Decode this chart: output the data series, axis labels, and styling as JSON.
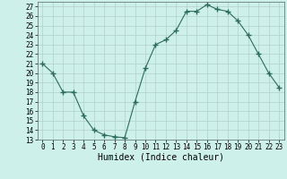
{
  "x": [
    0,
    1,
    2,
    3,
    4,
    5,
    6,
    7,
    8,
    9,
    10,
    11,
    12,
    13,
    14,
    15,
    16,
    17,
    18,
    19,
    20,
    21,
    22,
    23
  ],
  "y": [
    21,
    20,
    18,
    18,
    15.5,
    14,
    13.5,
    13.3,
    13.2,
    17,
    20.5,
    23,
    23.5,
    24.5,
    26.5,
    26.5,
    27.2,
    26.7,
    26.5,
    25.5,
    24,
    22,
    20,
    18.5
  ],
  "line_color": "#2d6b5e",
  "marker": "+",
  "marker_size": 4,
  "marker_linewidth": 1.0,
  "bg_color": "#cef0ea",
  "grid_color_major": "#b0cfc9",
  "grid_color_minor": "#c8e8e2",
  "xlabel": "Humidex (Indice chaleur)",
  "xlim": [
    -0.5,
    23.5
  ],
  "ylim": [
    13,
    27.5
  ],
  "yticks": [
    13,
    14,
    15,
    16,
    17,
    18,
    19,
    20,
    21,
    22,
    23,
    24,
    25,
    26,
    27
  ],
  "xticks": [
    0,
    1,
    2,
    3,
    4,
    5,
    6,
    7,
    8,
    9,
    10,
    11,
    12,
    13,
    14,
    15,
    16,
    17,
    18,
    19,
    20,
    21,
    22,
    23
  ],
  "tick_fontsize": 5.5,
  "xlabel_fontsize": 7
}
